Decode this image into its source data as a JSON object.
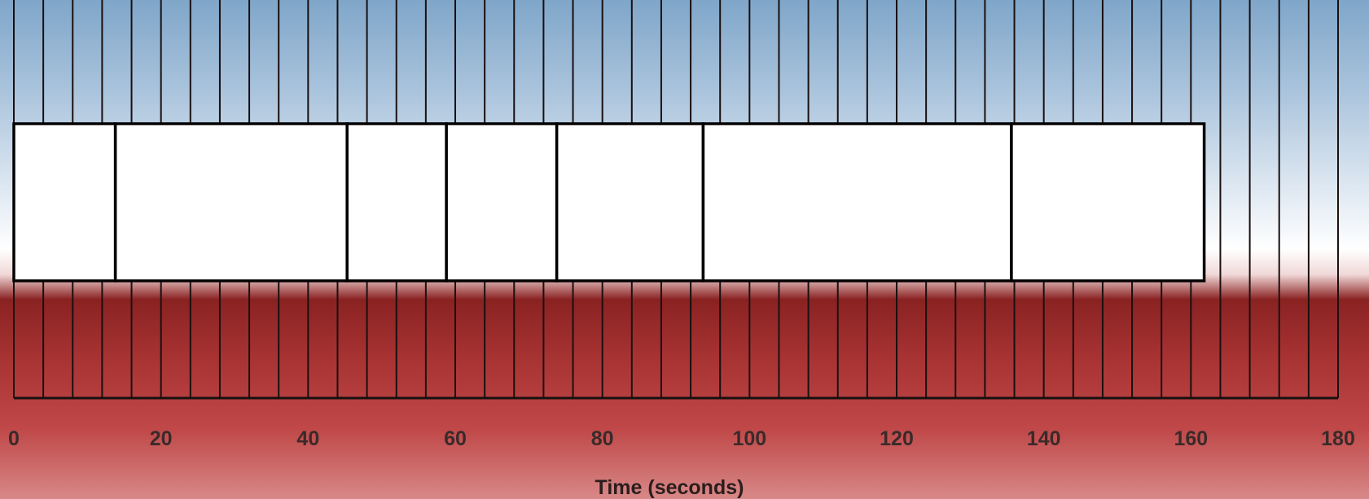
{
  "chart_data": {
    "type": "timeline",
    "title": "",
    "xlabel": "Time (seconds)",
    "xlim": [
      0,
      180
    ],
    "x_ticks": [
      0,
      20,
      40,
      60,
      80,
      100,
      120,
      140,
      160,
      180
    ],
    "x_tick_labels": [
      "0",
      "20",
      "40",
      "60",
      "80",
      "100",
      "120",
      "140",
      "160",
      "180"
    ],
    "minor_tick_step": 4,
    "grid": "vertical lines every 4 seconds",
    "segments": [
      {
        "start": 0,
        "end": 13.8
      },
      {
        "start": 13.8,
        "end": 45.3
      },
      {
        "start": 45.3,
        "end": 58.8
      },
      {
        "start": 58.8,
        "end": 73.8
      },
      {
        "start": 73.8,
        "end": 93.7
      },
      {
        "start": 93.7,
        "end": 135.6
      },
      {
        "start": 135.6,
        "end": 161.8
      }
    ],
    "colors": {
      "sky_top": "#7fa6c9",
      "sky_horizon": "#ffffff",
      "ground_dark": "#8a2222",
      "ground_mid": "#c04848",
      "ground_light": "#d88888",
      "grid_line": "#1a1010",
      "segment_fill": "#ffffff",
      "segment_stroke": "#000000"
    }
  }
}
